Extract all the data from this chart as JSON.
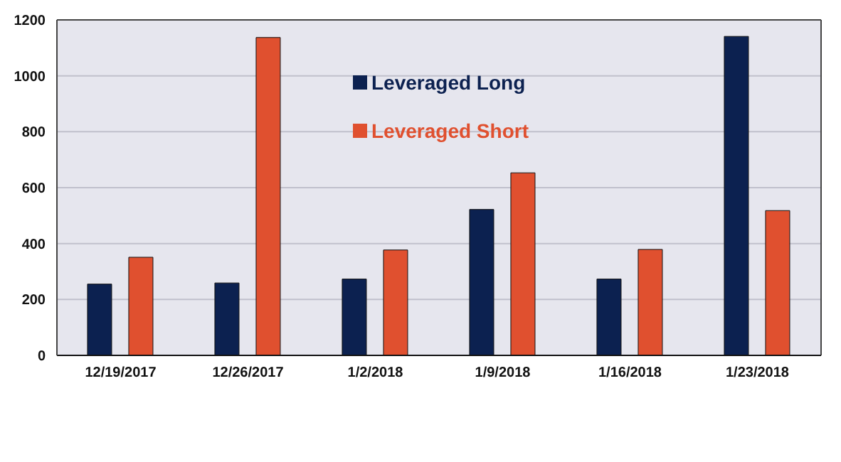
{
  "chart_data": {
    "type": "bar",
    "categories": [
      "12/19/2017",
      "12/26/2017",
      "1/2/2018",
      "1/9/2018",
      "1/16/2018",
      "1/23/2018"
    ],
    "series": [
      {
        "name": "Leveraged Long",
        "color": "#0c2150",
        "values": [
          255,
          259,
          273,
          522,
          273,
          1141
        ]
      },
      {
        "name": "Leveraged Short",
        "color": "#e0502f",
        "values": [
          351,
          1137,
          377,
          653,
          379,
          518
        ]
      }
    ],
    "ylim": [
      0,
      1200
    ],
    "yticks": [
      0,
      200,
      400,
      600,
      800,
      1000,
      1200
    ],
    "grid": "y",
    "legend": "top"
  }
}
